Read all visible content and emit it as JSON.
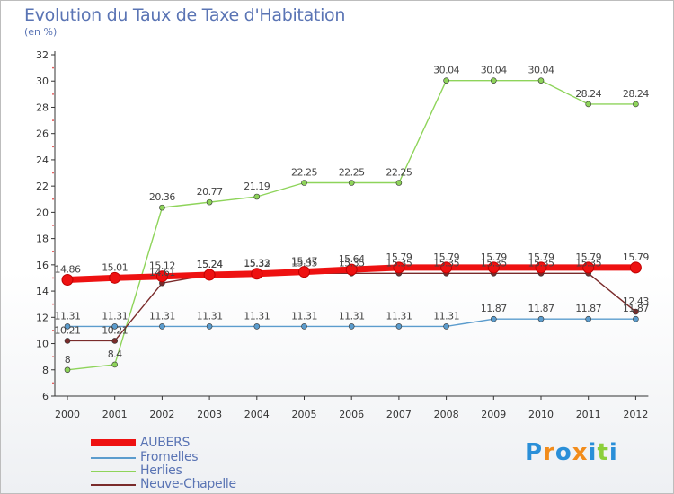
{
  "chart_data": {
    "type": "line",
    "title": "Evolution du Taux de Taxe d'Habitation",
    "subtitle": "(en %)",
    "categories": [
      "2000",
      "2001",
      "2002",
      "2003",
      "2004",
      "2005",
      "2006",
      "2007",
      "2008",
      "2009",
      "2010",
      "2011",
      "2012"
    ],
    "ylim": [
      6,
      32
    ],
    "yticks": [
      6,
      8,
      10,
      12,
      14,
      16,
      18,
      20,
      22,
      24,
      26,
      28,
      30,
      32
    ],
    "grid": false,
    "legend_position": "bottom-left",
    "series": [
      {
        "name": "Fromelles",
        "color": "#5b9ccd",
        "values": [
          11.31,
          11.31,
          11.31,
          11.31,
          11.31,
          11.31,
          11.31,
          11.31,
          11.31,
          11.87,
          11.87,
          11.87,
          11.87
        ],
        "labels": [
          "11.31",
          "11.31",
          "11.31",
          "11.31",
          "11.31",
          "11.31",
          "11.31",
          "11.31",
          "11.31",
          "11.87",
          "11.87",
          "11.87",
          "11.87"
        ]
      },
      {
        "name": "Herlies",
        "color": "#8ed45a",
        "values": [
          8,
          8.4,
          20.36,
          20.77,
          21.19,
          22.25,
          22.25,
          22.25,
          30.04,
          30.04,
          30.04,
          28.24,
          28.24
        ],
        "labels": [
          "8",
          "8.4",
          "20.36",
          "20.77",
          "21.19",
          "22.25",
          "22.25",
          "22.25",
          "30.04",
          "30.04",
          "30.04",
          "28.24",
          "28.24"
        ]
      },
      {
        "name": "Neuve-Chapelle",
        "color": "#7a2b2b",
        "values": [
          10.21,
          10.21,
          14.61,
          15.24,
          15.33,
          15.35,
          15.35,
          15.35,
          15.35,
          15.35,
          15.35,
          15.35,
          12.43
        ],
        "labels": [
          "10.21",
          "10.21",
          "14.61",
          "15.24",
          "15.33",
          "15.35",
          "15.35",
          "15.35",
          "15.35",
          "15.35",
          "15.35",
          "15.35",
          "12.43"
        ]
      },
      {
        "name": "AUBERS",
        "color": "#ee1111",
        "values": [
          14.86,
          15.01,
          15.12,
          15.24,
          15.32,
          15.47,
          15.64,
          15.79,
          15.79,
          15.79,
          15.79,
          15.79,
          15.79
        ],
        "labels": [
          "14.86",
          "15.01",
          "15.12",
          "15.24",
          "15.32",
          "15.47",
          "15.64",
          "15.79",
          "15.79",
          "15.79",
          "15.79",
          "15.79",
          "15.79"
        ]
      }
    ]
  },
  "legend": [
    {
      "name": "AUBERS",
      "color": "#ee1111",
      "thick": true
    },
    {
      "name": "Fromelles",
      "color": "#5b9ccd",
      "thick": false
    },
    {
      "name": "Herlies",
      "color": "#8ed45a",
      "thick": false
    },
    {
      "name": "Neuve-Chapelle",
      "color": "#7a2b2b",
      "thick": false
    }
  ],
  "logo": {
    "text": "Proxiti"
  }
}
